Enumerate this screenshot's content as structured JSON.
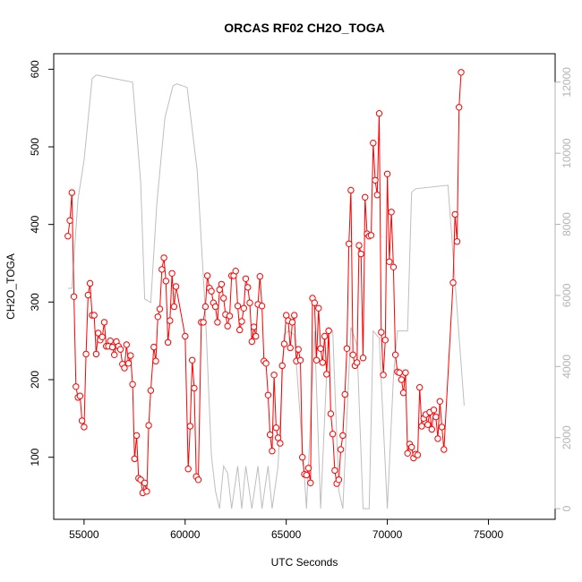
{
  "chart_data": {
    "type": "line",
    "title": "ORCAS RF02 CH2O_TOGA",
    "xlabel": "UTC Seconds",
    "ylabel": "CH2O_TOGA",
    "xlim": [
      53500,
      78300
    ],
    "ylim": [
      20,
      620
    ],
    "y2lim": [
      -300,
      12800
    ],
    "x_ticks": [
      55000,
      60000,
      65000,
      70000,
      75000
    ],
    "y_ticks": [
      100,
      200,
      300,
      400,
      500,
      600
    ],
    "y2_ticks": [
      0,
      2000,
      4000,
      6000,
      8000,
      10000,
      12000
    ],
    "grid": false,
    "colors": {
      "series": "#ff0000",
      "altitude": "#bebebe"
    },
    "series": [
      {
        "type": "line+points",
        "values": [
          [
            54200,
            385
          ],
          [
            54300,
            405
          ],
          [
            54400,
            441
          ],
          [
            54500,
            307
          ],
          [
            54600,
            191
          ],
          [
            54700,
            177
          ],
          [
            54800,
            179
          ],
          [
            54900,
            147
          ],
          [
            55000,
            139
          ],
          [
            55100,
            233
          ],
          [
            55200,
            309
          ],
          [
            55300,
            324
          ],
          [
            55400,
            283
          ],
          [
            55500,
            283
          ],
          [
            55600,
            233
          ],
          [
            55700,
            260
          ],
          [
            55800,
            251
          ],
          [
            55900,
            255
          ],
          [
            56000,
            274
          ],
          [
            56100,
            243
          ],
          [
            56200,
            243
          ],
          [
            56300,
            250
          ],
          [
            56400,
            242
          ],
          [
            56500,
            232
          ],
          [
            56600,
            249
          ],
          [
            56700,
            243
          ],
          [
            56800,
            239
          ],
          [
            56900,
            220
          ],
          [
            57000,
            215
          ],
          [
            57100,
            245
          ],
          [
            57200,
            221
          ],
          [
            57300,
            231
          ],
          [
            57400,
            194
          ],
          [
            57500,
            98
          ],
          [
            57600,
            128
          ],
          [
            57700,
            73
          ],
          [
            57800,
            71
          ],
          [
            57900,
            54
          ],
          [
            58000,
            67
          ],
          [
            58100,
            56
          ],
          [
            58200,
            141
          ],
          [
            58300,
            186
          ],
          [
            58450,
            242
          ],
          [
            58550,
            224
          ],
          [
            58650,
            281
          ],
          [
            58750,
            291
          ],
          [
            58850,
            342
          ],
          [
            58950,
            357
          ],
          [
            59050,
            327
          ],
          [
            59150,
            248
          ],
          [
            59250,
            276
          ],
          [
            59350,
            337
          ],
          [
            59450,
            294
          ],
          [
            59550,
            320
          ],
          [
            60000,
            256
          ],
          [
            60150,
            85
          ],
          [
            60250,
            140
          ],
          [
            60350,
            225
          ],
          [
            60450,
            189
          ],
          [
            60550,
            75
          ],
          [
            60650,
            71
          ],
          [
            60800,
            274
          ],
          [
            60900,
            274
          ],
          [
            61000,
            294
          ],
          [
            61100,
            334
          ],
          [
            61200,
            318
          ],
          [
            61300,
            314
          ],
          [
            61400,
            299
          ],
          [
            61500,
            294
          ],
          [
            61600,
            274
          ],
          [
            61700,
            316
          ],
          [
            61800,
            323
          ],
          [
            61900,
            305
          ],
          [
            62000,
            284
          ],
          [
            62100,
            269
          ],
          [
            62200,
            282
          ],
          [
            62300,
            334
          ],
          [
            62400,
            334
          ],
          [
            62500,
            340
          ],
          [
            62600,
            295
          ],
          [
            62700,
            264
          ],
          [
            62800,
            275
          ],
          [
            62900,
            292
          ],
          [
            63000,
            330
          ],
          [
            63100,
            319
          ],
          [
            63200,
            299
          ],
          [
            63300,
            249
          ],
          [
            63400,
            268
          ],
          [
            63500,
            256
          ],
          [
            63600,
            297
          ],
          [
            63700,
            333
          ],
          [
            63800,
            295
          ],
          [
            63900,
            224
          ],
          [
            64000,
            221
          ],
          [
            64100,
            180
          ],
          [
            64200,
            129
          ],
          [
            64300,
            108
          ],
          [
            64400,
            206
          ],
          [
            64500,
            138
          ],
          [
            64600,
            125
          ],
          [
            64700,
            118
          ],
          [
            64800,
            218
          ],
          [
            64900,
            246
          ],
          [
            65000,
            283
          ],
          [
            65100,
            276
          ],
          [
            65200,
            241
          ],
          [
            65300,
            274
          ],
          [
            65400,
            283
          ],
          [
            65500,
            224
          ],
          [
            65600,
            239
          ],
          [
            65700,
            225
          ],
          [
            65800,
            100
          ],
          [
            65900,
            78
          ],
          [
            66000,
            77
          ],
          [
            66100,
            86
          ],
          [
            66200,
            67
          ],
          [
            66300,
            305
          ],
          [
            66400,
            299
          ],
          [
            66500,
            225
          ],
          [
            66600,
            292
          ],
          [
            66700,
            240
          ],
          [
            66800,
            222
          ],
          [
            66900,
            256
          ],
          [
            67000,
            207
          ],
          [
            67100,
            263
          ],
          [
            67200,
            156
          ],
          [
            67300,
            130
          ],
          [
            67400,
            83
          ],
          [
            67500,
            66
          ],
          [
            67600,
            71
          ],
          [
            67700,
            110
          ],
          [
            67800,
            128
          ],
          [
            67900,
            181
          ],
          [
            68000,
            240
          ],
          [
            68100,
            375
          ],
          [
            68200,
            444
          ],
          [
            68300,
            232
          ],
          [
            68400,
            218
          ],
          [
            68500,
            222
          ],
          [
            68600,
            373
          ],
          [
            68700,
            362
          ],
          [
            68800,
            228
          ],
          [
            68900,
            435
          ],
          [
            69000,
            388
          ],
          [
            69100,
            385
          ],
          [
            69200,
            386
          ],
          [
            69300,
            505
          ],
          [
            69400,
            457
          ],
          [
            69500,
            438
          ],
          [
            69600,
            543
          ],
          [
            69700,
            261
          ],
          [
            69800,
            206
          ],
          [
            69900,
            251
          ],
          [
            70000,
            465
          ],
          [
            70100,
            352
          ],
          [
            70200,
            416
          ],
          [
            70300,
            345
          ],
          [
            70400,
            232
          ],
          [
            70500,
            210
          ],
          [
            70600,
            209
          ],
          [
            70700,
            200
          ],
          [
            70800,
            183
          ],
          [
            70900,
            209
          ],
          [
            71000,
            105
          ],
          [
            71100,
            117
          ],
          [
            71200,
            113
          ],
          [
            71300,
            99
          ],
          [
            71400,
            104
          ],
          [
            71500,
            103
          ],
          [
            71600,
            190
          ],
          [
            71700,
            140
          ],
          [
            71800,
            150
          ],
          [
            71900,
            155
          ],
          [
            72000,
            142
          ],
          [
            72100,
            158
          ],
          [
            72200,
            136
          ],
          [
            72300,
            161
          ],
          [
            72400,
            152
          ],
          [
            72500,
            124
          ],
          [
            72600,
            172
          ],
          [
            72700,
            139
          ],
          [
            72800,
            110
          ],
          [
            73250,
            325
          ],
          [
            73350,
            413
          ],
          [
            73450,
            378
          ],
          [
            73550,
            551
          ],
          [
            73650,
            596
          ]
        ]
      },
      {
        "type": "line",
        "values": [
          [
            54200,
            6200
          ],
          [
            54400,
            6200
          ],
          [
            54700,
            8700
          ],
          [
            55000,
            9800
          ],
          [
            55400,
            12100
          ],
          [
            55600,
            12200
          ],
          [
            57400,
            12000
          ],
          [
            57800,
            9200
          ],
          [
            58000,
            5900
          ],
          [
            58300,
            5800
          ],
          [
            58600,
            8600
          ],
          [
            59000,
            11000
          ],
          [
            59400,
            11900
          ],
          [
            59600,
            11950
          ],
          [
            60100,
            11850
          ],
          [
            60600,
            9500
          ],
          [
            61000,
            5500
          ],
          [
            61300,
            1500
          ],
          [
            61500,
            500
          ],
          [
            61700,
            0
          ],
          [
            61900,
            1200
          ],
          [
            62100,
            1000
          ],
          [
            62300,
            0
          ],
          [
            62600,
            1200
          ],
          [
            62800,
            0
          ],
          [
            63000,
            1200
          ],
          [
            63300,
            0
          ],
          [
            63600,
            1200
          ],
          [
            63800,
            0
          ],
          [
            64100,
            1200
          ],
          [
            64300,
            0
          ],
          [
            64600,
            1200
          ],
          [
            64900,
            4900
          ],
          [
            65100,
            5000
          ],
          [
            65400,
            4900
          ],
          [
            65900,
            900
          ],
          [
            66000,
            0
          ],
          [
            66400,
            5000
          ],
          [
            66700,
            0
          ],
          [
            67100,
            5100
          ],
          [
            67300,
            5000
          ],
          [
            67600,
            500
          ],
          [
            67800,
            0
          ],
          [
            68200,
            5100
          ],
          [
            68500,
            4600
          ],
          [
            68800,
            0
          ],
          [
            69100,
            0
          ],
          [
            69300,
            5000
          ],
          [
            69600,
            4800
          ],
          [
            70000,
            0
          ],
          [
            70300,
            3700
          ],
          [
            70500,
            5000
          ],
          [
            71000,
            5000
          ],
          [
            71200,
            8900
          ],
          [
            71400,
            9000
          ],
          [
            73000,
            9100
          ],
          [
            73800,
            2900
          ]
        ]
      }
    ]
  }
}
